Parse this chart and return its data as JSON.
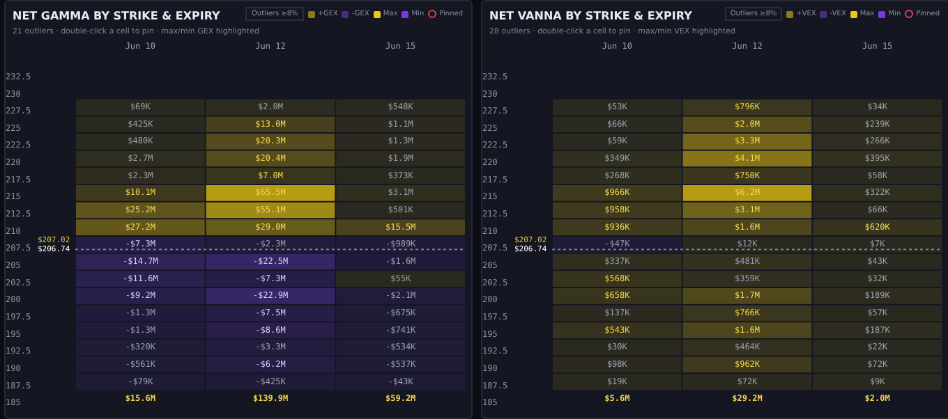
{
  "chart_data": [
    {
      "type": "heatmap",
      "title": "NET GAMMA BY STRIKE & EXPIRY",
      "subtitle": "21 outliers · double-click a cell to pin · max/min GEX highlighted",
      "categories": [
        "Jun 10",
        "Jun 12",
        "Jun 15"
      ],
      "y_categories": [
        "232.5",
        "230",
        "227.5",
        "225",
        "222.5",
        "220",
        "217.5",
        "215",
        "212.5",
        "210",
        "207.5",
        "205",
        "202.5",
        "200",
        "197.5",
        "195",
        "192.5",
        "190",
        "187.5",
        "185"
      ],
      "cells": [
        [
          null,
          null,
          null
        ],
        [
          null,
          null,
          null
        ],
        [
          69000,
          2000000,
          548000
        ],
        [
          425000,
          13000000,
          1100000
        ],
        [
          480000,
          20300000,
          1300000
        ],
        [
          2700000,
          20400000,
          1900000
        ],
        [
          2300000,
          7000000,
          373000
        ],
        [
          10100000,
          65500000,
          3100000
        ],
        [
          25200000,
          55100000,
          501000
        ],
        [
          27200000,
          29000000,
          15500000
        ],
        [
          -7300000,
          -2300000,
          -989000
        ],
        [
          -14700000,
          -22500000,
          -1600000
        ],
        [
          -11600000,
          -7300000,
          55000
        ],
        [
          -9200000,
          -22900000,
          -2100000
        ],
        [
          -1300000,
          -7500000,
          -675000
        ],
        [
          -1300000,
          -8600000,
          -741000
        ],
        [
          -320000,
          -3300000,
          -534000
        ],
        [
          -561000,
          -6200000,
          -537000
        ],
        [
          -79000,
          -425000,
          -43000
        ],
        [
          null,
          null,
          null
        ]
      ],
      "cell_labels": [
        [
          null,
          null,
          null
        ],
        [
          null,
          null,
          null
        ],
        [
          "$69K",
          "$2.0M",
          "$548K"
        ],
        [
          "$425K",
          "$13.0M",
          "$1.1M"
        ],
        [
          "$480K",
          "$20.3M",
          "$1.3M"
        ],
        [
          "$2.7M",
          "$20.4M",
          "$1.9M"
        ],
        [
          "$2.3M",
          "$7.0M",
          "$373K"
        ],
        [
          "$10.1M",
          "$65.5M",
          "$3.1M"
        ],
        [
          "$25.2M",
          "$55.1M",
          "$501K"
        ],
        [
          "$27.2M",
          "$29.0M",
          "$15.5M"
        ],
        [
          "-$7.3M",
          "-$2.3M",
          "-$989K"
        ],
        [
          "-$14.7M",
          "-$22.5M",
          "-$1.6M"
        ],
        [
          "-$11.6M",
          "-$7.3M",
          "$55K"
        ],
        [
          "-$9.2M",
          "-$22.9M",
          "-$2.1M"
        ],
        [
          "-$1.3M",
          "-$7.5M",
          "-$675K"
        ],
        [
          "-$1.3M",
          "-$8.6M",
          "-$741K"
        ],
        [
          "-$320K",
          "-$3.3M",
          "-$534K"
        ],
        [
          "-$561K",
          "-$6.2M",
          "-$537K"
        ],
        [
          "-$79K",
          "-$425K",
          "-$43K"
        ],
        [
          null,
          null,
          null
        ]
      ],
      "annotations": [
        "Outliers ≥8%",
        "+GEX",
        "-GEX",
        "Max",
        "Min",
        "Pinned",
        "$15.6M",
        "$139.9M",
        "$59.2M",
        "$207.02",
        "$206.74"
      ]
    },
    {
      "type": "heatmap",
      "title": "NET VANNA BY STRIKE & EXPIRY",
      "subtitle": "28 outliers · double-click a cell to pin · max/min VEX highlighted",
      "categories": [
        "Jun 10",
        "Jun 12",
        "Jun 15"
      ],
      "y_categories": [
        "232.5",
        "230",
        "227.5",
        "225",
        "222.5",
        "220",
        "217.5",
        "215",
        "212.5",
        "210",
        "207.5",
        "205",
        "202.5",
        "200",
        "197.5",
        "195",
        "192.5",
        "190",
        "187.5",
        "185"
      ],
      "cells": [
        [
          null,
          null,
          null
        ],
        [
          null,
          null,
          null
        ],
        [
          53000,
          796000,
          34000
        ],
        [
          66000,
          2000000,
          239000
        ],
        [
          59000,
          3300000,
          266000
        ],
        [
          349000,
          4100000,
          395000
        ],
        [
          268000,
          750000,
          58000
        ],
        [
          966000,
          6200000,
          322000
        ],
        [
          958000,
          3100000,
          66000
        ],
        [
          936000,
          1600000,
          620000
        ],
        [
          -47000,
          12000,
          7000
        ],
        [
          337000,
          481000,
          43000
        ],
        [
          568000,
          359000,
          32000
        ],
        [
          658000,
          1700000,
          189000
        ],
        [
          137000,
          766000,
          57000
        ],
        [
          543000,
          1600000,
          187000
        ],
        [
          30000,
          464000,
          22000
        ],
        [
          98000,
          962000,
          72000
        ],
        [
          19000,
          72000,
          9000
        ],
        [
          null,
          null,
          null
        ]
      ],
      "cell_labels": [
        [
          null,
          null,
          null
        ],
        [
          null,
          null,
          null
        ],
        [
          "$53K",
          "$796K",
          "$34K"
        ],
        [
          "$66K",
          "$2.0M",
          "$239K"
        ],
        [
          "$59K",
          "$3.3M",
          "$266K"
        ],
        [
          "$349K",
          "$4.1M",
          "$395K"
        ],
        [
          "$268K",
          "$750K",
          "$58K"
        ],
        [
          "$966K",
          "$6.2M",
          "$322K"
        ],
        [
          "$958K",
          "$3.1M",
          "$66K"
        ],
        [
          "$936K",
          "$1.6M",
          "$620K"
        ],
        [
          "-$47K",
          "$12K",
          "$7K"
        ],
        [
          "$337K",
          "$481K",
          "$43K"
        ],
        [
          "$568K",
          "$359K",
          "$32K"
        ],
        [
          "$658K",
          "$1.7M",
          "$189K"
        ],
        [
          "$137K",
          "$766K",
          "$57K"
        ],
        [
          "$543K",
          "$1.6M",
          "$187K"
        ],
        [
          "$30K",
          "$464K",
          "$22K"
        ],
        [
          "$98K",
          "$962K",
          "$72K"
        ],
        [
          "$19K",
          "$72K",
          "$9K"
        ],
        [
          null,
          null,
          null
        ]
      ],
      "annotations": [
        "Outliers ≥8%",
        "+VEX",
        "-VEX",
        "Max",
        "Min",
        "Pinned",
        "$5.6M",
        "$29.2M",
        "$2.0M",
        "$207.02",
        "$206.74"
      ]
    }
  ]
}
